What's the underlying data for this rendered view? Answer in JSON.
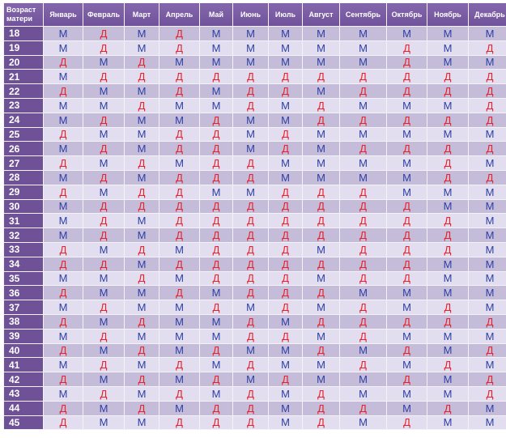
{
  "header": {
    "age_label": "Возраст матери",
    "months": [
      "Январь",
      "Февраль",
      "Март",
      "Апрель",
      "Май",
      "Июнь",
      "Июль",
      "Август",
      "Сентябрь",
      "Октябрь",
      "Ноябрь",
      "Декабрь"
    ]
  },
  "colors": {
    "m": "#2b3fa6",
    "d": "#e8202a",
    "header": "#7a5ca4",
    "age_column": "#6e5196"
  },
  "rows": [
    {
      "age": "18",
      "cells": [
        "М",
        "Д",
        "М",
        "Д",
        "М",
        "М",
        "М",
        "М",
        "М",
        "М",
        "М",
        "М"
      ]
    },
    {
      "age": "19",
      "cells": [
        "М",
        "Д",
        "М",
        "Д",
        "М",
        "М",
        "М",
        "М",
        "М",
        "Д",
        "М",
        "Д"
      ]
    },
    {
      "age": "20",
      "cells": [
        "Д",
        "М",
        "Д",
        "М",
        "М",
        "М",
        "М",
        "М",
        "М",
        "Д",
        "М",
        "М"
      ]
    },
    {
      "age": "21",
      "cells": [
        "М",
        "Д",
        "Д",
        "Д",
        "Д",
        "Д",
        "Д",
        "Д",
        "Д",
        "Д",
        "Д",
        "Д"
      ]
    },
    {
      "age": "22",
      "cells": [
        "Д",
        "М",
        "М",
        "Д",
        "М",
        "Д",
        "Д",
        "М",
        "Д",
        "Д",
        "Д",
        "Д"
      ]
    },
    {
      "age": "23",
      "cells": [
        "М",
        "М",
        "Д",
        "М",
        "М",
        "Д",
        "М",
        "Д",
        "М",
        "М",
        "М",
        "Д"
      ]
    },
    {
      "age": "24",
      "cells": [
        "М",
        "Д",
        "М",
        "М",
        "Д",
        "М",
        "М",
        "Д",
        "Д",
        "Д",
        "Д",
        "Д"
      ]
    },
    {
      "age": "25",
      "cells": [
        "Д",
        "М",
        "М",
        "Д",
        "Д",
        "М",
        "Д",
        "М",
        "М",
        "М",
        "М",
        "М"
      ]
    },
    {
      "age": "26",
      "cells": [
        "М",
        "Д",
        "М",
        "Д",
        "Д",
        "М",
        "Д",
        "М",
        "Д",
        "Д",
        "Д",
        "Д"
      ]
    },
    {
      "age": "27",
      "cells": [
        "Д",
        "М",
        "Д",
        "М",
        "Д",
        "Д",
        "М",
        "М",
        "М",
        "М",
        "Д",
        "М"
      ]
    },
    {
      "age": "28",
      "cells": [
        "М",
        "Д",
        "М",
        "Д",
        "Д",
        "Д",
        "М",
        "М",
        "М",
        "М",
        "Д",
        "Д"
      ]
    },
    {
      "age": "29",
      "cells": [
        "Д",
        "М",
        "Д",
        "Д",
        "М",
        "М",
        "Д",
        "Д",
        "Д",
        "М",
        "М",
        "М"
      ]
    },
    {
      "age": "30",
      "cells": [
        "М",
        "Д",
        "Д",
        "Д",
        "Д",
        "Д",
        "Д",
        "Д",
        "Д",
        "Д",
        "М",
        "М"
      ]
    },
    {
      "age": "31",
      "cells": [
        "М",
        "Д",
        "М",
        "Д",
        "Д",
        "Д",
        "Д",
        "Д",
        "Д",
        "Д",
        "Д",
        "М"
      ]
    },
    {
      "age": "32",
      "cells": [
        "М",
        "Д",
        "М",
        "Д",
        "Д",
        "Д",
        "Д",
        "Д",
        "Д",
        "Д",
        "Д",
        "М"
      ]
    },
    {
      "age": "33",
      "cells": [
        "Д",
        "М",
        "Д",
        "М",
        "Д",
        "Д",
        "Д",
        "М",
        "Д",
        "Д",
        "Д",
        "М"
      ]
    },
    {
      "age": "34",
      "cells": [
        "Д",
        "Д",
        "М",
        "Д",
        "Д",
        "Д",
        "Д",
        "Д",
        "Д",
        "Д",
        "М",
        "М"
      ]
    },
    {
      "age": "35",
      "cells": [
        "М",
        "М",
        "Д",
        "М",
        "Д",
        "Д",
        "Д",
        "М",
        "Д",
        "Д",
        "М",
        "М"
      ]
    },
    {
      "age": "36",
      "cells": [
        "Д",
        "М",
        "М",
        "Д",
        "М",
        "Д",
        "Д",
        "Д",
        "М",
        "М",
        "М",
        "М"
      ]
    },
    {
      "age": "37",
      "cells": [
        "М",
        "Д",
        "М",
        "М",
        "Д",
        "М",
        "Д",
        "М",
        "Д",
        "М",
        "Д",
        "М"
      ]
    },
    {
      "age": "38",
      "cells": [
        "Д",
        "М",
        "Д",
        "М",
        "М",
        "Д",
        "М",
        "Д",
        "Д",
        "Д",
        "Д",
        "Д"
      ]
    },
    {
      "age": "39",
      "cells": [
        "М",
        "Д",
        "М",
        "М",
        "М",
        "Д",
        "Д",
        "М",
        "Д",
        "М",
        "М",
        "М"
      ]
    },
    {
      "age": "40",
      "cells": [
        "Д",
        "М",
        "Д",
        "М",
        "Д",
        "М",
        "М",
        "Д",
        "М",
        "Д",
        "М",
        "Д"
      ]
    },
    {
      "age": "41",
      "cells": [
        "М",
        "Д",
        "М",
        "Д",
        "М",
        "Д",
        "М",
        "М",
        "Д",
        "М",
        "Д",
        "М"
      ]
    },
    {
      "age": "42",
      "cells": [
        "Д",
        "М",
        "Д",
        "М",
        "Д",
        "М",
        "Д",
        "М",
        "М",
        "Д",
        "М",
        "Д"
      ]
    },
    {
      "age": "43",
      "cells": [
        "М",
        "Д",
        "М",
        "Д",
        "М",
        "Д",
        "М",
        "Д",
        "М",
        "М",
        "М",
        "Д"
      ]
    },
    {
      "age": "44",
      "cells": [
        "Д",
        "М",
        "Д",
        "М",
        "Д",
        "Д",
        "М",
        "Д",
        "Д",
        "М",
        "Д",
        "М"
      ]
    },
    {
      "age": "45",
      "cells": [
        "Д",
        "М",
        "М",
        "Д",
        "Д",
        "Д",
        "М",
        "Д",
        "М",
        "Д",
        "М",
        "М"
      ]
    }
  ]
}
